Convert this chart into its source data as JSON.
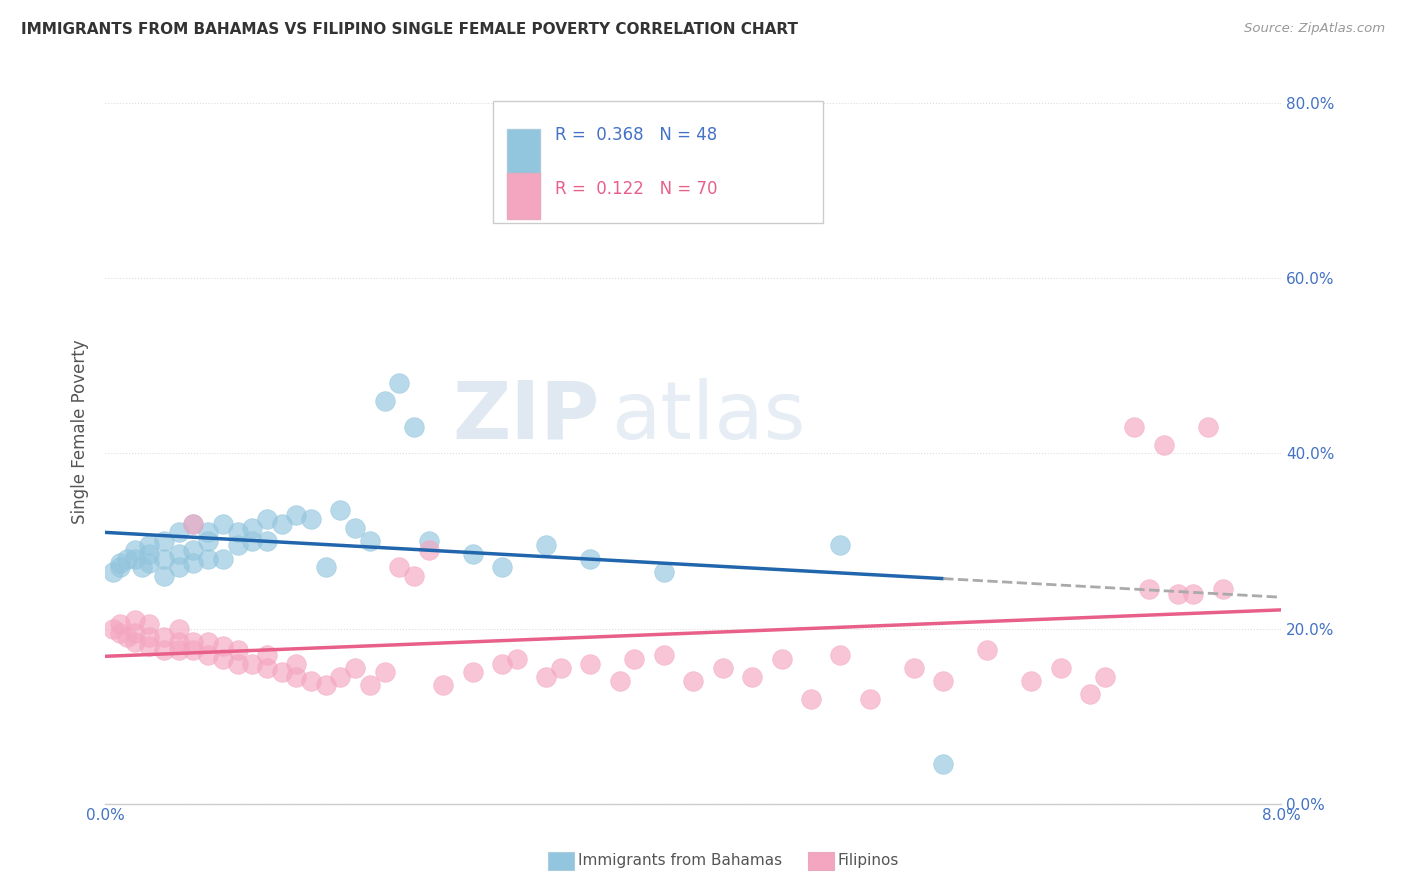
{
  "title": "IMMIGRANTS FROM BAHAMAS VS FILIPINO SINGLE FEMALE POVERTY CORRELATION CHART",
  "source": "Source: ZipAtlas.com",
  "ylabel": "Single Female Poverty",
  "right_yticks": [
    0.0,
    0.2,
    0.4,
    0.6,
    0.8
  ],
  "right_yticklabels": [
    "0.0%",
    "20.0%",
    "40.0%",
    "60.0%",
    "80.0%"
  ],
  "xlim": [
    0.0,
    0.08
  ],
  "ylim": [
    0.0,
    0.85
  ],
  "legend1_R": "0.368",
  "legend1_N": "48",
  "legend2_R": "0.122",
  "legend2_N": "70",
  "blue_color": "#92c5de",
  "pink_color": "#f4a6c0",
  "blue_line_color": "#2166ac",
  "pink_line_color": "#e8608a",
  "watermark_zip": "ZIP",
  "watermark_atlas": "atlas",
  "bahamas_x": [
    0.0005,
    0.001,
    0.001,
    0.0015,
    0.002,
    0.002,
    0.0025,
    0.003,
    0.003,
    0.003,
    0.004,
    0.004,
    0.004,
    0.005,
    0.005,
    0.005,
    0.006,
    0.006,
    0.006,
    0.007,
    0.007,
    0.007,
    0.008,
    0.008,
    0.009,
    0.009,
    0.01,
    0.01,
    0.011,
    0.011,
    0.012,
    0.013,
    0.014,
    0.015,
    0.016,
    0.017,
    0.018,
    0.019,
    0.02,
    0.021,
    0.022,
    0.025,
    0.027,
    0.03,
    0.033,
    0.038,
    0.05,
    0.057
  ],
  "bahamas_y": [
    0.265,
    0.27,
    0.275,
    0.28,
    0.28,
    0.29,
    0.27,
    0.275,
    0.285,
    0.295,
    0.26,
    0.28,
    0.3,
    0.27,
    0.285,
    0.31,
    0.275,
    0.29,
    0.32,
    0.28,
    0.3,
    0.31,
    0.28,
    0.32,
    0.295,
    0.31,
    0.3,
    0.315,
    0.3,
    0.325,
    0.32,
    0.33,
    0.325,
    0.27,
    0.335,
    0.315,
    0.3,
    0.46,
    0.48,
    0.43,
    0.3,
    0.285,
    0.27,
    0.295,
    0.28,
    0.265,
    0.295,
    0.045
  ],
  "filipino_x": [
    0.0005,
    0.001,
    0.001,
    0.0015,
    0.002,
    0.002,
    0.002,
    0.003,
    0.003,
    0.003,
    0.004,
    0.004,
    0.005,
    0.005,
    0.005,
    0.006,
    0.006,
    0.006,
    0.007,
    0.007,
    0.008,
    0.008,
    0.009,
    0.009,
    0.01,
    0.011,
    0.011,
    0.012,
    0.013,
    0.013,
    0.014,
    0.015,
    0.016,
    0.017,
    0.018,
    0.019,
    0.02,
    0.021,
    0.022,
    0.023,
    0.025,
    0.027,
    0.028,
    0.03,
    0.031,
    0.033,
    0.035,
    0.036,
    0.038,
    0.04,
    0.042,
    0.044,
    0.046,
    0.048,
    0.05,
    0.052,
    0.055,
    0.057,
    0.06,
    0.063,
    0.065,
    0.067,
    0.068,
    0.07,
    0.071,
    0.072,
    0.073,
    0.074,
    0.075,
    0.076
  ],
  "filipino_y": [
    0.2,
    0.195,
    0.205,
    0.19,
    0.185,
    0.195,
    0.21,
    0.18,
    0.19,
    0.205,
    0.175,
    0.19,
    0.175,
    0.185,
    0.2,
    0.175,
    0.185,
    0.32,
    0.17,
    0.185,
    0.165,
    0.18,
    0.16,
    0.175,
    0.16,
    0.155,
    0.17,
    0.15,
    0.145,
    0.16,
    0.14,
    0.135,
    0.145,
    0.155,
    0.135,
    0.15,
    0.27,
    0.26,
    0.29,
    0.135,
    0.15,
    0.16,
    0.165,
    0.145,
    0.155,
    0.16,
    0.14,
    0.165,
    0.17,
    0.14,
    0.155,
    0.145,
    0.165,
    0.12,
    0.17,
    0.12,
    0.155,
    0.14,
    0.175,
    0.14,
    0.155,
    0.125,
    0.145,
    0.43,
    0.245,
    0.41,
    0.24,
    0.24,
    0.43,
    0.245
  ]
}
